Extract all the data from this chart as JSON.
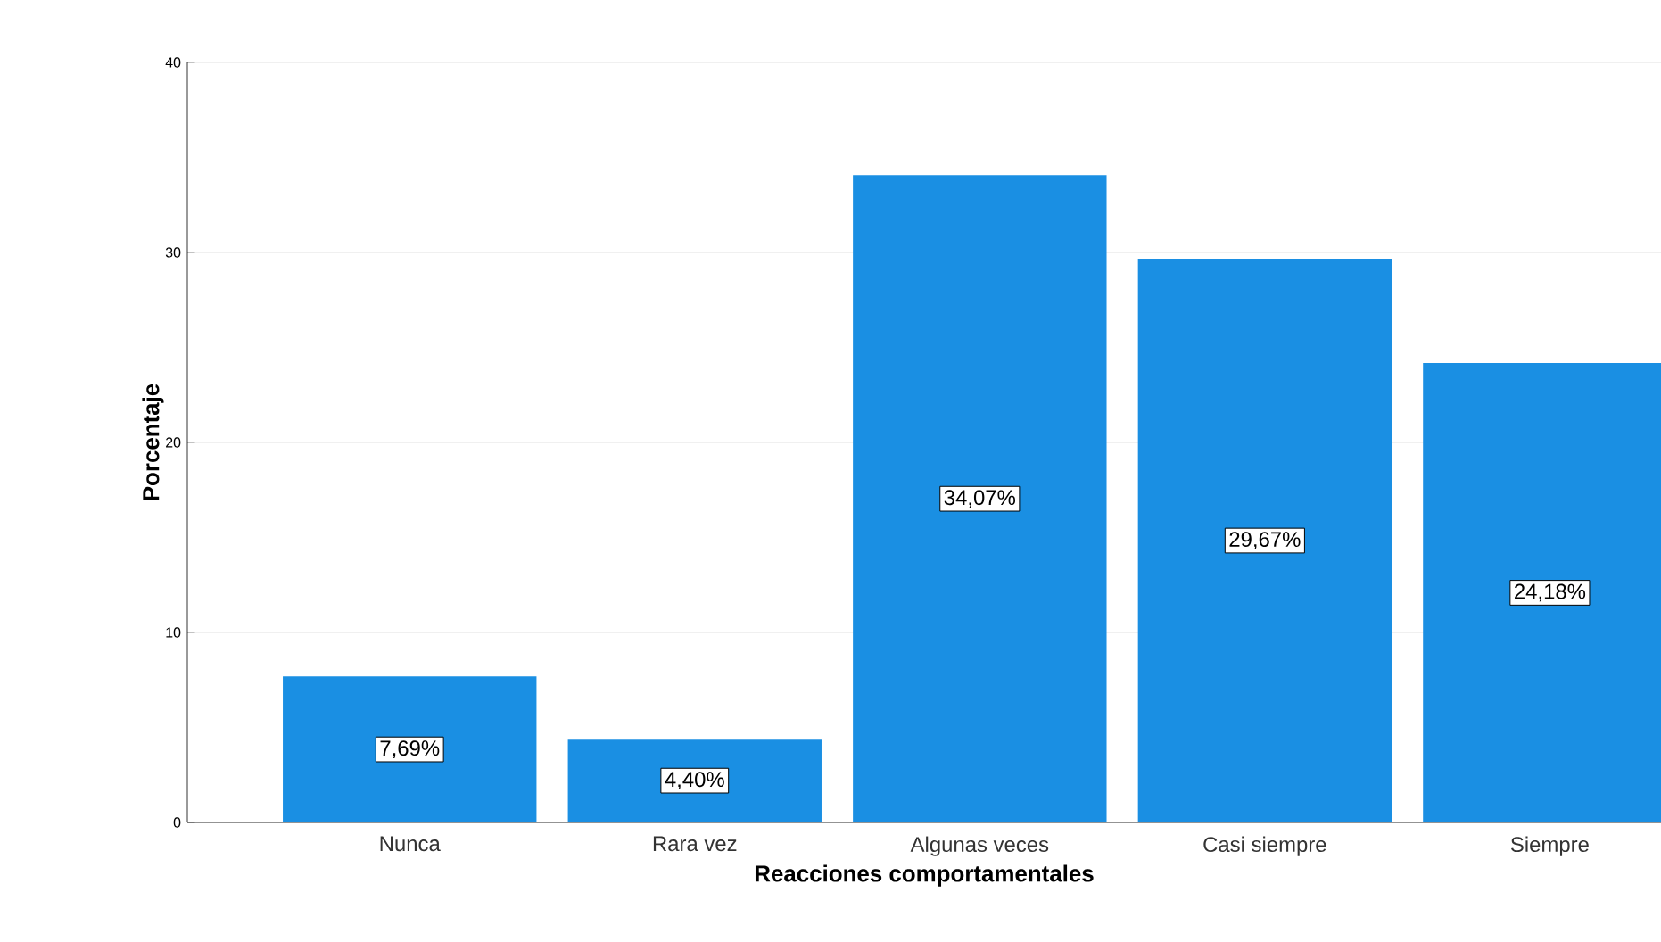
{
  "chart_data": {
    "type": "bar",
    "xlabel": "Reacciones comportamentales",
    "ylabel": "Porcentaje",
    "categories": [
      "Nunca",
      "Rara vez",
      "Algunas veces",
      "Casi siempre",
      "Siempre"
    ],
    "values": [
      7.69,
      4.4,
      34.07,
      29.67,
      24.18
    ],
    "value_labels": [
      "7,69%",
      "4,40%",
      "34,07%",
      "29,67%",
      "24,18%"
    ],
    "color": "#1a8fe3",
    "ylim": [
      0,
      40
    ],
    "yticks": [
      0,
      10,
      20,
      30,
      40
    ],
    "grid": "y"
  }
}
